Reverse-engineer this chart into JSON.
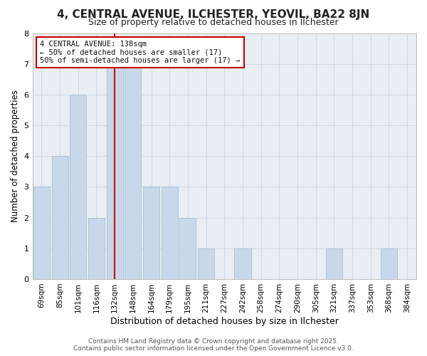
{
  "title": "4, CENTRAL AVENUE, ILCHESTER, YEOVIL, BA22 8JN",
  "subtitle": "Size of property relative to detached houses in Ilchester",
  "xlabel": "Distribution of detached houses by size in Ilchester",
  "ylabel": "Number of detached properties",
  "categories": [
    "69sqm",
    "85sqm",
    "101sqm",
    "116sqm",
    "132sqm",
    "148sqm",
    "164sqm",
    "179sqm",
    "195sqm",
    "211sqm",
    "227sqm",
    "242sqm",
    "258sqm",
    "274sqm",
    "290sqm",
    "305sqm",
    "321sqm",
    "337sqm",
    "353sqm",
    "368sqm",
    "384sqm"
  ],
  "values": [
    3,
    4,
    6,
    2,
    7,
    7,
    3,
    3,
    2,
    1,
    0,
    1,
    0,
    0,
    0,
    0,
    1,
    0,
    0,
    1,
    0
  ],
  "bar_color": "#c8d8ea",
  "bar_edgecolor": "#a8bfd0",
  "grid_color": "#d0d8e0",
  "plot_bg_color": "#e8eef4",
  "fig_bg_color": "#ffffff",
  "red_line_index": 4,
  "annotation_text": "4 CENTRAL AVENUE: 138sqm\n← 50% of detached houses are smaller (17)\n50% of semi-detached houses are larger (17) →",
  "annotation_box_facecolor": "#ffffff",
  "annotation_border_color": "#cc0000",
  "red_line_color": "#cc0000",
  "ylim": [
    0,
    8
  ],
  "yticks": [
    0,
    1,
    2,
    3,
    4,
    5,
    6,
    7,
    8
  ],
  "footer_line1": "Contains HM Land Registry data © Crown copyright and database right 2025.",
  "footer_line2": "Contains public sector information licensed under the Open Government Licence v3.0.",
  "title_fontsize": 11,
  "subtitle_fontsize": 9,
  "tick_fontsize": 7.5,
  "ylabel_fontsize": 8.5,
  "xlabel_fontsize": 9,
  "footer_fontsize": 6.5,
  "annotation_fontsize": 7.5
}
